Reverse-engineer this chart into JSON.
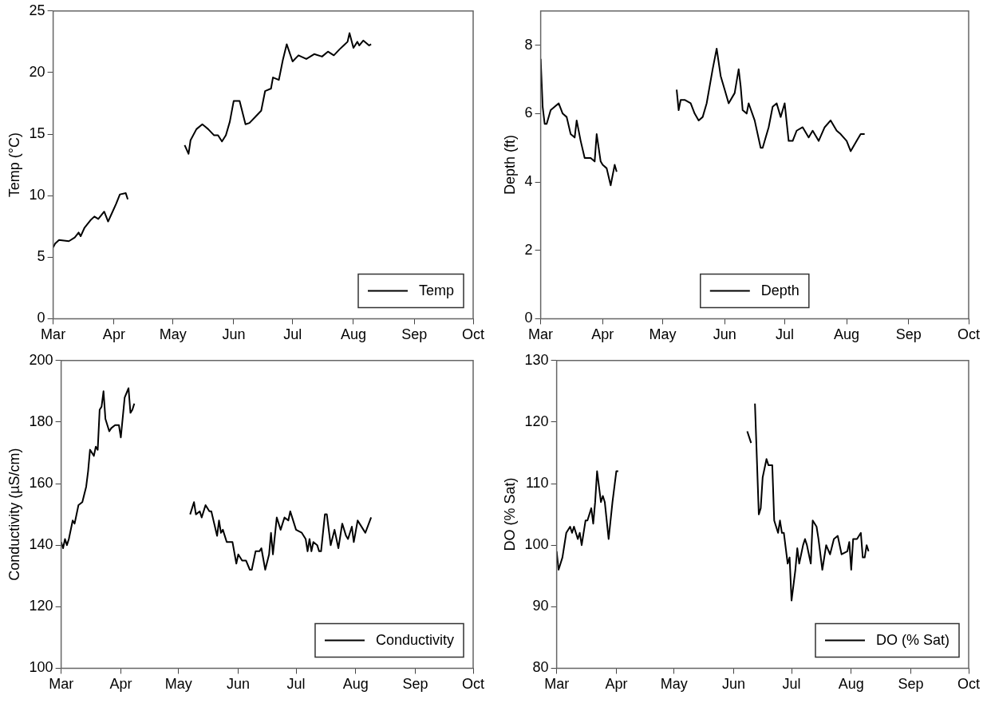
{
  "chart_data": [
    {
      "type": "line",
      "ylabel": "Temp (°C)",
      "legend": "bottom right",
      "xlim": [
        "--03-01",
        "--10-01"
      ],
      "xticks": [
        {
          "value": "--03-01",
          "label": "Mar"
        },
        {
          "value": "--04-01",
          "label": "Apr"
        },
        {
          "value": "--05-01",
          "label": "May"
        },
        {
          "value": "--06-01",
          "label": "Jun"
        },
        {
          "value": "--07-01",
          "label": "Jul"
        },
        {
          "value": "--08-01",
          "label": "Aug"
        },
        {
          "value": "--09-01",
          "label": "Sep"
        },
        {
          "value": "--10-01",
          "label": "Oct"
        }
      ],
      "ylim": [
        0,
        25
      ],
      "yticks": [
        0,
        5,
        10,
        15,
        20,
        25
      ],
      "marker": "none",
      "line_style": "solid",
      "x": [
        "--03-01",
        "--03-02",
        "--03-04",
        "--03-09",
        "--03-12",
        "--03-14",
        "--03-15",
        "--03-17",
        "--03-20",
        "--03-22",
        "--03-24",
        "--03-27",
        "--03-29",
        "--03-31",
        "--04-02",
        "--04-04",
        "--04-07",
        "--04-08",
        "--04-20",
        "--05-07",
        "--05-09",
        "--05-10",
        "--05-13",
        "--05-16",
        "--05-19",
        "--05-22",
        "--05-24",
        "--05-26",
        "--05-28",
        "--05-30",
        "--06-01",
        "--06-04",
        "--06-07",
        "--06-09",
        "--06-12",
        "--06-15",
        "--06-17",
        "--06-20",
        "--06-21",
        "--06-24",
        "--06-26",
        "--06-28",
        "--07-01",
        "--07-04",
        "--07-08",
        "--07-12",
        "--07-16",
        "--07-19",
        "--07-22",
        "--07-25",
        "--07-27",
        "--07-29",
        "--07-30",
        "--08-01",
        "--08-03",
        "--08-04",
        "--08-06",
        "--08-09",
        "--08-10"
      ],
      "series": [
        {
          "name": "Temp",
          "color": "#000000",
          "values": [
            5.8,
            6.1,
            6.4,
            6.3,
            6.6,
            7.0,
            6.7,
            7.4,
            8.0,
            8.3,
            8.1,
            8.7,
            7.9,
            8.6,
            9.3,
            10.1,
            10.2,
            9.7,
            null,
            14.1,
            13.4,
            14.5,
            15.4,
            15.8,
            15.4,
            14.9,
            14.9,
            14.4,
            14.9,
            16.0,
            17.7,
            17.7,
            15.8,
            15.9,
            16.4,
            16.9,
            18.5,
            18.7,
            19.6,
            19.4,
            21.0,
            22.3,
            20.9,
            21.4,
            21.1,
            21.5,
            21.3,
            21.7,
            21.4,
            21.9,
            22.2,
            22.5,
            23.2,
            22.0,
            22.5,
            22.2,
            22.6,
            22.2,
            22.3
          ]
        }
      ]
    },
    {
      "type": "line",
      "ylabel": "Depth (ft)",
      "legend": "bottom",
      "xlim": [
        "--03-01",
        "--10-01"
      ],
      "xticks": [
        {
          "value": "--03-01",
          "label": "Mar"
        },
        {
          "value": "--04-01",
          "label": "Apr"
        },
        {
          "value": "--05-01",
          "label": "May"
        },
        {
          "value": "--06-01",
          "label": "Jun"
        },
        {
          "value": "--07-01",
          "label": "Jul"
        },
        {
          "value": "--08-01",
          "label": "Aug"
        },
        {
          "value": "--09-01",
          "label": "Sep"
        },
        {
          "value": "--10-01",
          "label": "Oct"
        }
      ],
      "ylim": [
        0,
        9
      ],
      "yticks": [
        0,
        2,
        4,
        6,
        8
      ],
      "marker": "none",
      "line_style": "solid",
      "x": [
        "--03-01",
        "--03-02",
        "--03-03",
        "--03-04",
        "--03-06",
        "--03-10",
        "--03-12",
        "--03-14",
        "--03-16",
        "--03-18",
        "--03-19",
        "--03-21",
        "--03-23",
        "--03-26",
        "--03-28",
        "--03-29",
        "--03-31",
        "--04-01",
        "--04-03",
        "--04-05",
        "--04-07",
        "--04-08",
        "--04-20",
        "--05-08",
        "--05-09",
        "--05-10",
        "--05-12",
        "--05-15",
        "--05-17",
        "--05-19",
        "--05-21",
        "--05-23",
        "--05-26",
        "--05-28",
        "--05-30",
        "--06-01",
        "--06-03",
        "--06-06",
        "--06-08",
        "--06-09",
        "--06-10",
        "--06-12",
        "--06-13",
        "--06-16",
        "--06-19",
        "--06-20",
        "--06-23",
        "--06-25",
        "--06-27",
        "--06-29",
        "--07-01",
        "--07-03",
        "--07-05",
        "--07-07",
        "--07-10",
        "--07-13",
        "--07-15",
        "--07-18",
        "--07-21",
        "--07-24",
        "--07-27",
        "--07-29",
        "--08-01",
        "--08-03",
        "--08-06",
        "--08-08",
        "--08-10"
      ],
      "series": [
        {
          "name": "Depth",
          "color": "#000000",
          "values": [
            7.6,
            6.2,
            5.7,
            5.7,
            6.1,
            6.3,
            6.0,
            5.9,
            5.4,
            5.3,
            5.8,
            5.2,
            4.7,
            4.7,
            4.6,
            5.4,
            4.6,
            4.5,
            4.4,
            3.9,
            4.5,
            4.3,
            null,
            6.7,
            6.1,
            6.4,
            6.4,
            6.3,
            6.0,
            5.8,
            5.9,
            6.3,
            7.3,
            7.9,
            7.1,
            6.7,
            6.3,
            6.6,
            7.3,
            6.8,
            6.1,
            6.0,
            6.3,
            5.8,
            5.0,
            5.0,
            5.6,
            6.2,
            6.3,
            5.9,
            6.3,
            5.2,
            5.2,
            5.5,
            5.6,
            5.3,
            5.5,
            5.2,
            5.6,
            5.8,
            5.5,
            5.4,
            5.2,
            4.9,
            5.2,
            5.4,
            5.4
          ]
        }
      ]
    },
    {
      "type": "line",
      "ylabel": "Conductivity (µS/cm)",
      "legend": "bottom right",
      "xlim": [
        "--03-01",
        "--10-01"
      ],
      "xticks": [
        {
          "value": "--03-01",
          "label": "Mar"
        },
        {
          "value": "--04-01",
          "label": "Apr"
        },
        {
          "value": "--05-01",
          "label": "May"
        },
        {
          "value": "--06-01",
          "label": "Jun"
        },
        {
          "value": "--07-01",
          "label": "Jul"
        },
        {
          "value": "--08-01",
          "label": "Aug"
        },
        {
          "value": "--09-01",
          "label": "Sep"
        },
        {
          "value": "--10-01",
          "label": "Oct"
        }
      ],
      "ylim": [
        100,
        200
      ],
      "yticks": [
        100,
        120,
        140,
        160,
        180,
        200
      ],
      "marker": "none",
      "line_style": "solid",
      "x": [
        "--03-01",
        "--03-02",
        "--03-03",
        "--03-04",
        "--03-05",
        "--03-07",
        "--03-08",
        "--03-10",
        "--03-12",
        "--03-14",
        "--03-15",
        "--03-16",
        "--03-18",
        "--03-19",
        "--03-20",
        "--03-21",
        "--03-22",
        "--03-23",
        "--03-24",
        "--03-26",
        "--03-27",
        "--03-29",
        "--03-31",
        "--04-01",
        "--04-03",
        "--04-05",
        "--04-06",
        "--04-07",
        "--04-08",
        "--04-20",
        "--05-07",
        "--05-09",
        "--05-10",
        "--05-12",
        "--05-13",
        "--05-15",
        "--05-17",
        "--05-18",
        "--05-21",
        "--05-22",
        "--05-23",
        "--05-24",
        "--05-26",
        "--05-29",
        "--05-31",
        "--06-01",
        "--06-03",
        "--06-05",
        "--06-07",
        "--06-08",
        "--06-10",
        "--06-12",
        "--06-13",
        "--06-15",
        "--06-17",
        "--06-18",
        "--06-19",
        "--06-21",
        "--06-23",
        "--06-25",
        "--06-27",
        "--06-28",
        "--06-30",
        "--07-01",
        "--07-04",
        "--07-06",
        "--07-07",
        "--07-08",
        "--07-09",
        "--07-10",
        "--07-12",
        "--07-13",
        "--07-14",
        "--07-16",
        "--07-17",
        "--07-19",
        "--07-21",
        "--07-23",
        "--07-25",
        "--07-27",
        "--07-28",
        "--07-30",
        "--07-31",
        "--08-02",
        "--08-05",
        "--08-06",
        "--08-09"
      ],
      "series": [
        {
          "name": "Conductivity",
          "color": "#000000",
          "values": [
            141,
            139,
            142,
            140,
            142,
            148,
            147,
            153,
            154,
            159,
            164,
            171,
            169,
            172,
            171,
            184,
            185,
            190,
            181,
            177,
            178,
            179,
            179,
            175,
            188,
            191,
            183,
            184,
            186,
            null,
            150,
            154,
            150,
            151,
            149,
            153,
            151,
            151,
            143,
            148,
            144,
            145,
            141,
            141,
            134,
            137,
            135,
            135,
            132,
            132,
            138,
            138,
            139,
            132,
            137,
            144,
            137,
            149,
            145,
            149,
            148,
            151,
            147,
            145,
            144,
            142,
            138,
            142,
            138,
            141,
            140,
            138,
            138,
            150,
            150,
            140,
            145,
            139,
            147,
            143,
            142,
            146,
            141,
            148,
            145,
            144,
            149
          ]
        }
      ]
    },
    {
      "type": "line",
      "ylabel": "DO (% Sat)",
      "legend": "bottom right",
      "xlim": [
        "--03-01",
        "--10-01"
      ],
      "xticks": [
        {
          "value": "--03-01",
          "label": "Mar"
        },
        {
          "value": "--04-01",
          "label": "Apr"
        },
        {
          "value": "--05-01",
          "label": "May"
        },
        {
          "value": "--06-01",
          "label": "Jun"
        },
        {
          "value": "--07-01",
          "label": "Jul"
        },
        {
          "value": "--08-01",
          "label": "Aug"
        },
        {
          "value": "--09-01",
          "label": "Sep"
        },
        {
          "value": "--10-01",
          "label": "Oct"
        }
      ],
      "ylim": [
        80,
        130
      ],
      "yticks": [
        80,
        90,
        100,
        110,
        120,
        130
      ],
      "marker": "none",
      "line_style": "solid",
      "x": [
        "--03-01",
        "--03-02",
        "--03-04",
        "--03-06",
        "--03-08",
        "--03-09",
        "--03-10",
        "--03-12",
        "--03-13",
        "--03-14",
        "--03-16",
        "--03-17",
        "--03-19",
        "--03-20",
        "--03-21",
        "--03-22",
        "--03-24",
        "--03-25",
        "--03-26",
        "--03-28",
        "--03-30",
        "--04-01",
        "--04-02",
        "--04-20",
        "--06-08",
        "--06-10",
        "--06-11",
        "--06-12",
        "--06-14",
        "--06-15",
        "--06-16",
        "--06-18",
        "--06-19",
        "--06-21",
        "--06-22",
        "--06-24",
        "--06-25",
        "--06-26",
        "--06-27",
        "--06-29",
        "--06-30",
        "--07-01",
        "--07-03",
        "--07-04",
        "--07-05",
        "--07-07",
        "--07-08",
        "--07-09",
        "--07-11",
        "--07-12",
        "--07-14",
        "--07-15",
        "--07-17",
        "--07-19",
        "--07-21",
        "--07-23",
        "--07-25",
        "--07-27",
        "--07-30",
        "--07-31",
        "--08-01",
        "--08-02",
        "--08-04",
        "--08-06",
        "--08-07",
        "--08-08",
        "--08-09",
        "--08-10"
      ],
      "series": [
        {
          "name": "DO (% Sat)",
          "color": "#000000",
          "values": [
            99,
            96,
            98,
            102,
            103,
            102,
            103,
            101,
            102,
            100,
            104,
            104,
            106,
            103.5,
            107,
            112,
            107,
            108,
            107,
            101,
            107,
            112,
            112,
            null,
            118.5,
            116.6,
            null,
            123,
            105,
            106,
            111,
            114,
            113,
            113,
            104,
            102,
            104,
            102,
            102,
            97,
            98,
            91,
            96,
            99.5,
            97,
            100,
            101,
            100,
            97,
            104,
            103,
            101,
            96,
            100,
            98.5,
            101,
            101.5,
            98.5,
            99,
            100.5,
            96,
            101,
            101,
            102,
            98,
            98,
            100,
            99
          ]
        }
      ]
    }
  ]
}
